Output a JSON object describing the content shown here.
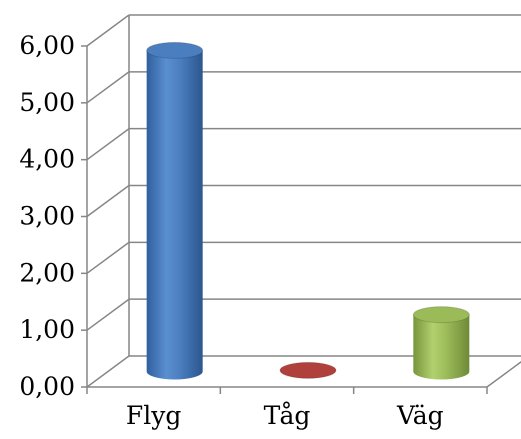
{
  "chart_data": {
    "type": "bar",
    "style": "3d-cylinder",
    "categories": [
      "Flyg",
      "Tåg",
      "Väg"
    ],
    "values": [
      5.65,
      0.02,
      1.0
    ],
    "ylim": [
      0,
      6
    ],
    "yticks": [
      "0,00",
      "1,00",
      "2,00",
      "3,00",
      "4,00",
      "5,00",
      "6,00"
    ],
    "grid": true,
    "legend": "none",
    "colors": {
      "Flyg": "#4a7ebf",
      "Tåg": "#b0403b",
      "Väg": "#9bbb59"
    }
  }
}
